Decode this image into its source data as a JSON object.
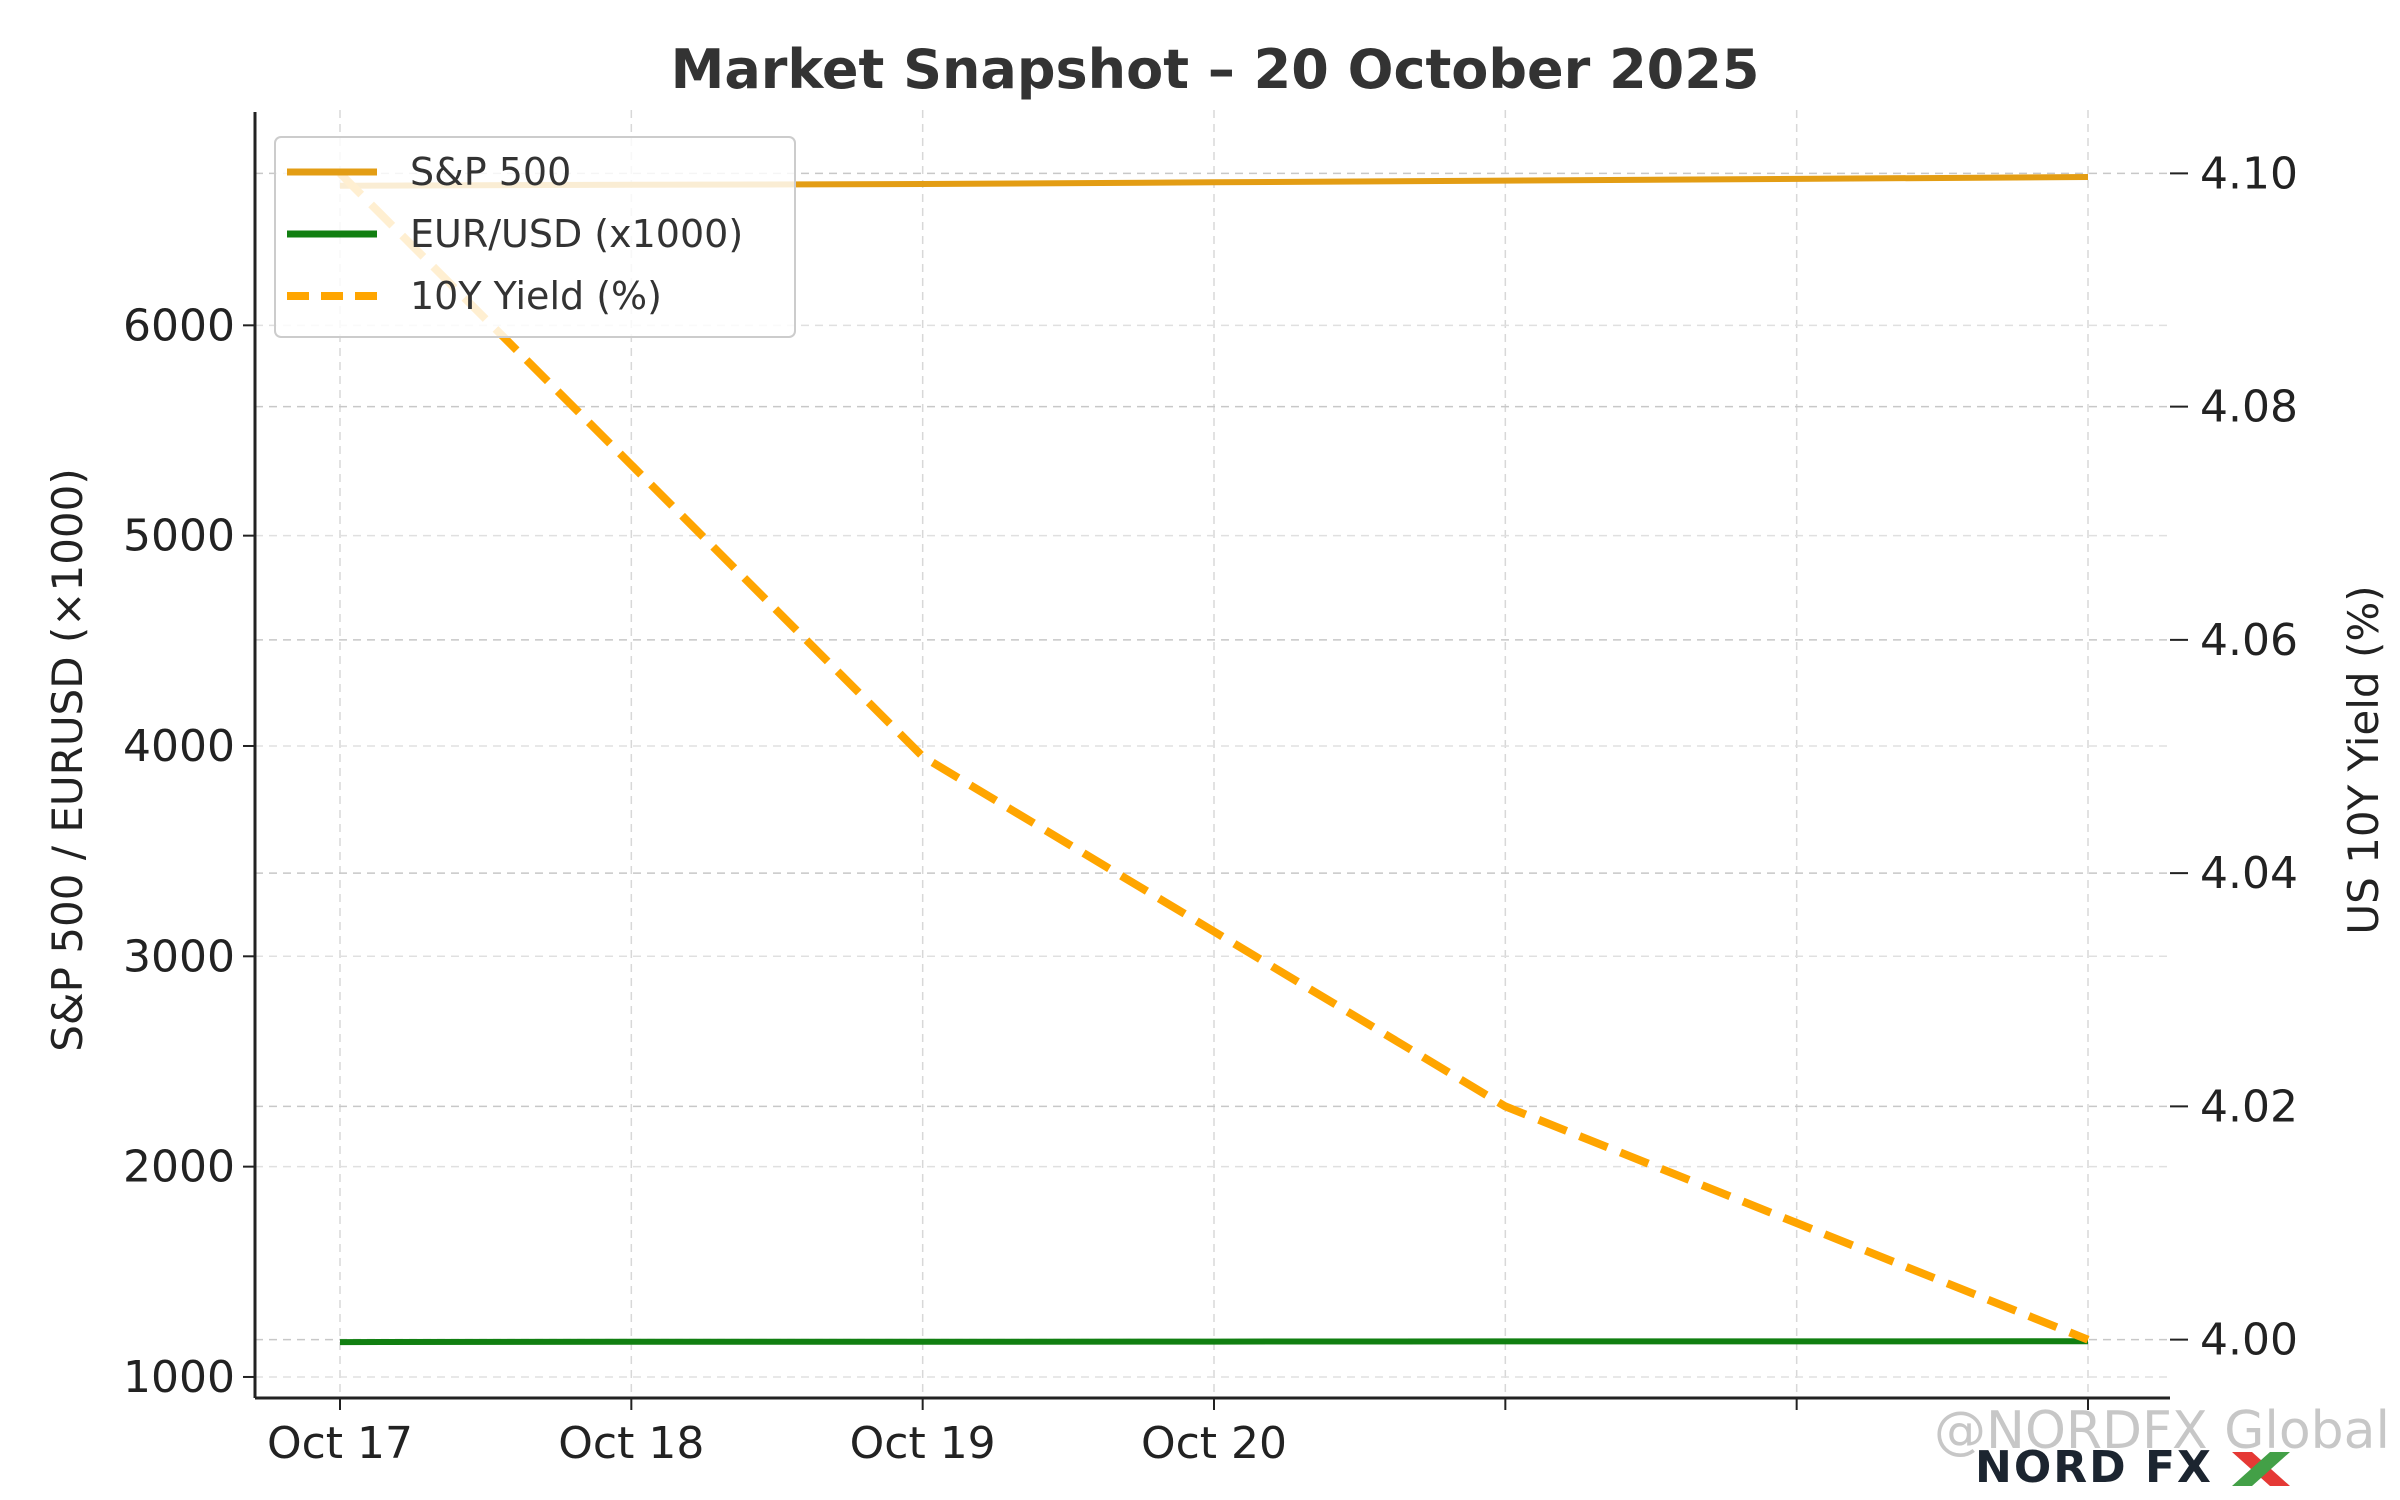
{
  "chart_data": {
    "type": "line",
    "title": "Market Snapshot – 20 October 2025",
    "x_categories": [
      "Oct 17",
      "Oct 18",
      "Oct 19",
      "Oct 20",
      "",
      "",
      ""
    ],
    "series": [
      {
        "name": "S&P 500",
        "axis": "left",
        "style": "solid",
        "color": "#e39d14",
        "values": [
          6664,
          6668,
          6672,
          6680,
          6688,
          6696,
          6705
        ]
      },
      {
        "name": "EUR/USD (x1000)",
        "axis": "left",
        "style": "solid",
        "color": "#117f11",
        "values": [
          1166,
          1167,
          1167,
          1168,
          1169,
          1169,
          1170
        ]
      },
      {
        "name": "10Y Yield (%)",
        "axis": "right",
        "style": "dashed",
        "color": "#ffa500",
        "values": [
          4.1,
          4.075,
          4.05,
          4.035,
          4.02,
          4.01,
          4.0
        ]
      }
    ],
    "left_axis": {
      "label": "S&P 500 / EURUSD (×1000)",
      "ticks": [
        1000,
        2000,
        3000,
        4000,
        5000,
        6000
      ],
      "range": [
        900,
        7000
      ]
    },
    "right_axis": {
      "label": "US 10Y Yield (%)",
      "ticks": [
        4.0,
        4.02,
        4.04,
        4.06,
        4.08,
        4.1
      ],
      "range": [
        3.995,
        4.105
      ]
    },
    "grid": true,
    "legend_position": "top-left"
  },
  "watermark": {
    "handle": "@NORDFX Global",
    "logo_text": "NORD FX",
    "logo_colors": [
      "#e53935",
      "#43a047"
    ]
  }
}
